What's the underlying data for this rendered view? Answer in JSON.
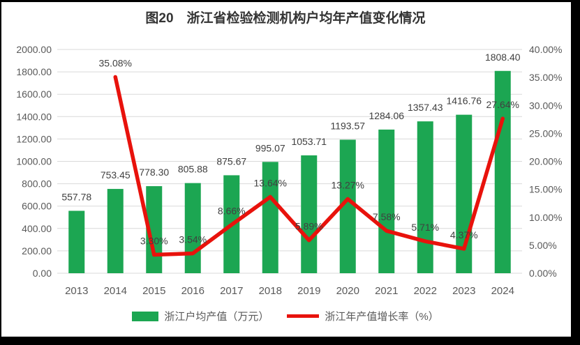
{
  "chart_data": {
    "type": "combo",
    "title": "图20　浙江省检验检测机构户均年产值变化情况",
    "categories": [
      "2013",
      "2014",
      "2015",
      "2016",
      "2017",
      "2018",
      "2019",
      "2020",
      "2021",
      "2022",
      "2023",
      "2024"
    ],
    "series": [
      {
        "name": "浙江户均产值（万元）",
        "type": "bar",
        "axis": "left",
        "color": "#1CA652",
        "values": [
          557.78,
          753.45,
          778.3,
          805.88,
          875.67,
          995.07,
          1053.71,
          1193.57,
          1284.06,
          1357.43,
          1416.76,
          1808.4
        ],
        "labels": [
          "557.78",
          "753.45",
          "778.30",
          "805.88",
          "875.67",
          "995.07",
          "1053.71",
          "1193.57",
          "1284.06",
          "1357.43",
          "1416.76",
          "1808.40"
        ]
      },
      {
        "name": "浙江年产值增长率（%）",
        "type": "line",
        "axis": "right",
        "color": "#E8120C",
        "values": [
          null,
          35.08,
          3.3,
          3.54,
          8.66,
          13.64,
          5.89,
          13.27,
          7.58,
          5.71,
          4.37,
          27.64
        ],
        "labels": [
          null,
          "35.08%",
          "3.30%",
          "3.54%",
          "8.66%",
          "13.64%",
          "5.89%",
          "13.27%",
          "7.58%",
          "5.71%",
          "4.37%",
          "27.64%"
        ]
      }
    ],
    "left_axis": {
      "min": 0,
      "max": 2000,
      "step": 200,
      "tick_labels": [
        "0.00",
        "200.00",
        "400.00",
        "600.00",
        "800.00",
        "1000.00",
        "1200.00",
        "1400.00",
        "1600.00",
        "1800.00",
        "2000.00"
      ]
    },
    "right_axis": {
      "min": 0,
      "max": 40,
      "step": 5,
      "tick_labels": [
        "0.00%",
        "5.00%",
        "10.00%",
        "15.00%",
        "20.00%",
        "25.00%",
        "30.00%",
        "35.00%",
        "40.00%"
      ]
    },
    "grid": true,
    "gridline_color": "#D9D9D9",
    "legend_position": "bottom",
    "xlabel": "",
    "ylabel": ""
  },
  "legend": {
    "items": [
      {
        "label": "浙江户均产值（万元）",
        "swatch": "bar"
      },
      {
        "label": "浙江年产值增长率（%）",
        "swatch": "line"
      }
    ]
  }
}
